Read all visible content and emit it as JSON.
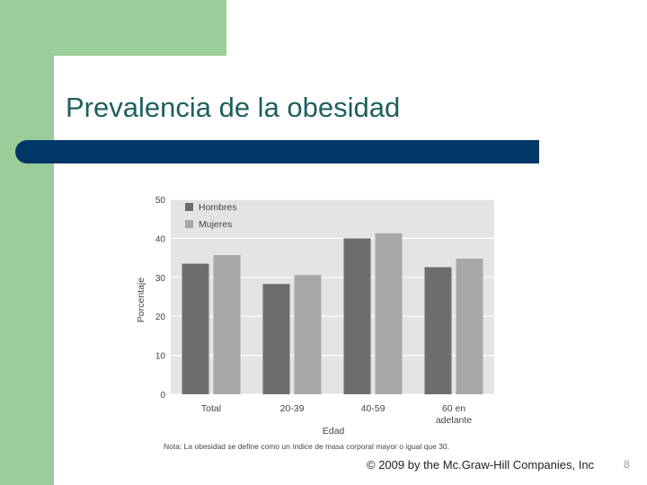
{
  "slide": {
    "title": "Prevalencia de la obesidad",
    "footer": "© 2009 by the Mc.Graw-Hill Companies, Inc",
    "page_number": "8"
  },
  "colors": {
    "green_band": "#9ccc98",
    "title_bar": "#003769",
    "title_text": "#1f5f5f",
    "series_hombres": "#6d6d6f",
    "series_mujeres": "#a8a8aa",
    "plot_background": "#e4e4e4"
  },
  "chart_data": {
    "type": "bar",
    "categories": [
      "Total",
      "20-39",
      "40-59",
      "60 en adelante"
    ],
    "category_labels": [
      [
        "Total"
      ],
      [
        "20-39"
      ],
      [
        "40-59"
      ],
      [
        "60 en",
        "adelante"
      ]
    ],
    "series": [
      {
        "name": "Hombres",
        "values": [
          33.5,
          28.3,
          40.0,
          32.6
        ],
        "color": "#6d6d6f"
      },
      {
        "name": "Mujeres",
        "values": [
          35.7,
          30.6,
          41.3,
          34.8
        ],
        "color": "#a8a8aa"
      }
    ],
    "ylim": [
      0,
      50
    ],
    "yticks": [
      0,
      10,
      20,
      30,
      40,
      50
    ],
    "xlabel": "Edad",
    "ylabel": "Porcentaje",
    "legend_position": "top-left",
    "grid": true,
    "note": "Nota: La obesidad se define como un índice de masa corporal mayor o igual que 30."
  }
}
